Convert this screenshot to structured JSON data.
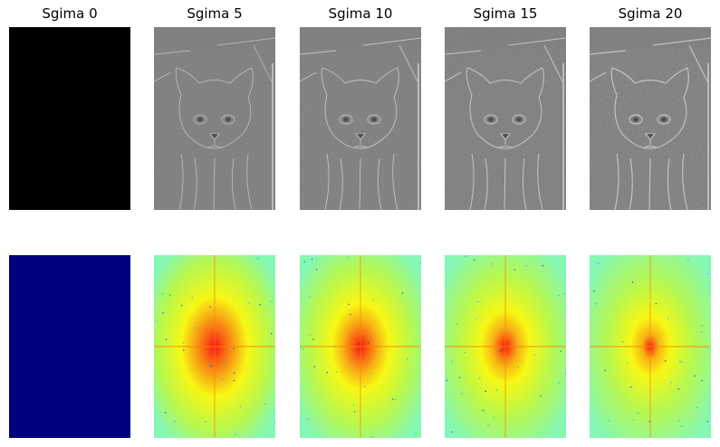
{
  "panels": [
    {
      "title": "Sgima 0",
      "sigma": 0
    },
    {
      "title": "Sgima 5",
      "sigma": 5
    },
    {
      "title": "Sgima 10",
      "sigma": 10
    },
    {
      "title": "Sgima 15",
      "sigma": 15
    },
    {
      "title": "Sgima 20",
      "sigma": 20
    }
  ],
  "colors": {
    "zero_image": "#000000",
    "zero_spectrum": "#00007f",
    "highpass_gray": "#7c7c7c",
    "spectrum_low": "#7fffb3",
    "spectrum_mid": "#ffff00",
    "spectrum_high": "#ff0000"
  },
  "content": {
    "top_row": "high-pass filtered cat images",
    "bottom_row": "frequency spectra (jet colormap)"
  }
}
